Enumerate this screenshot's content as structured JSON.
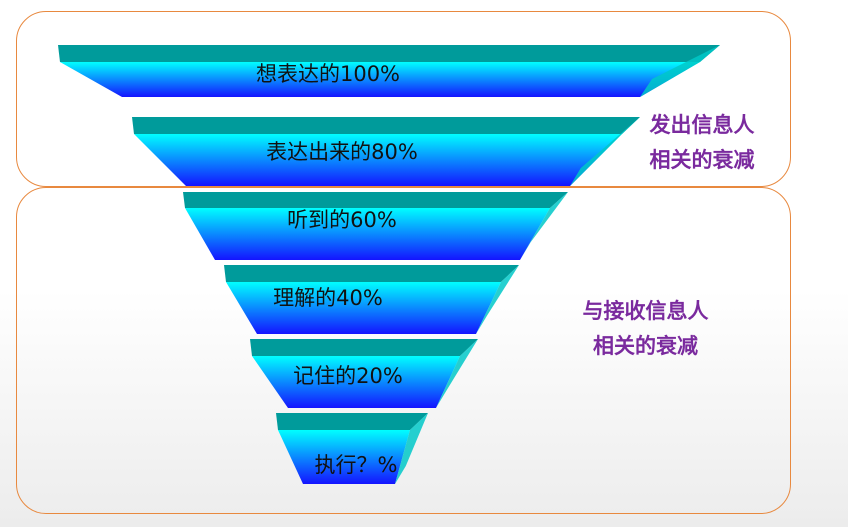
{
  "funnel": {
    "layers": [
      {
        "label": "想表达的100%"
      },
      {
        "label": "表达出来的80%"
      },
      {
        "label": "听到的60%"
      },
      {
        "label": "理解的40%"
      },
      {
        "label": "记住的20%"
      },
      {
        "label": "执行？%"
      }
    ],
    "colors": {
      "top_face": "#009b9b",
      "gradient_top": "#00ffff",
      "gradient_bottom": "#1414ff",
      "side_face": "#00c8c8",
      "box_border": "#e8893f",
      "side_text": "#7a2a9e"
    }
  },
  "groups": {
    "sender": {
      "line1": "发出信息人",
      "line2": "相关的衰减"
    },
    "receiver": {
      "line1": "与接收信息人",
      "line2": "相关的衰减"
    }
  }
}
